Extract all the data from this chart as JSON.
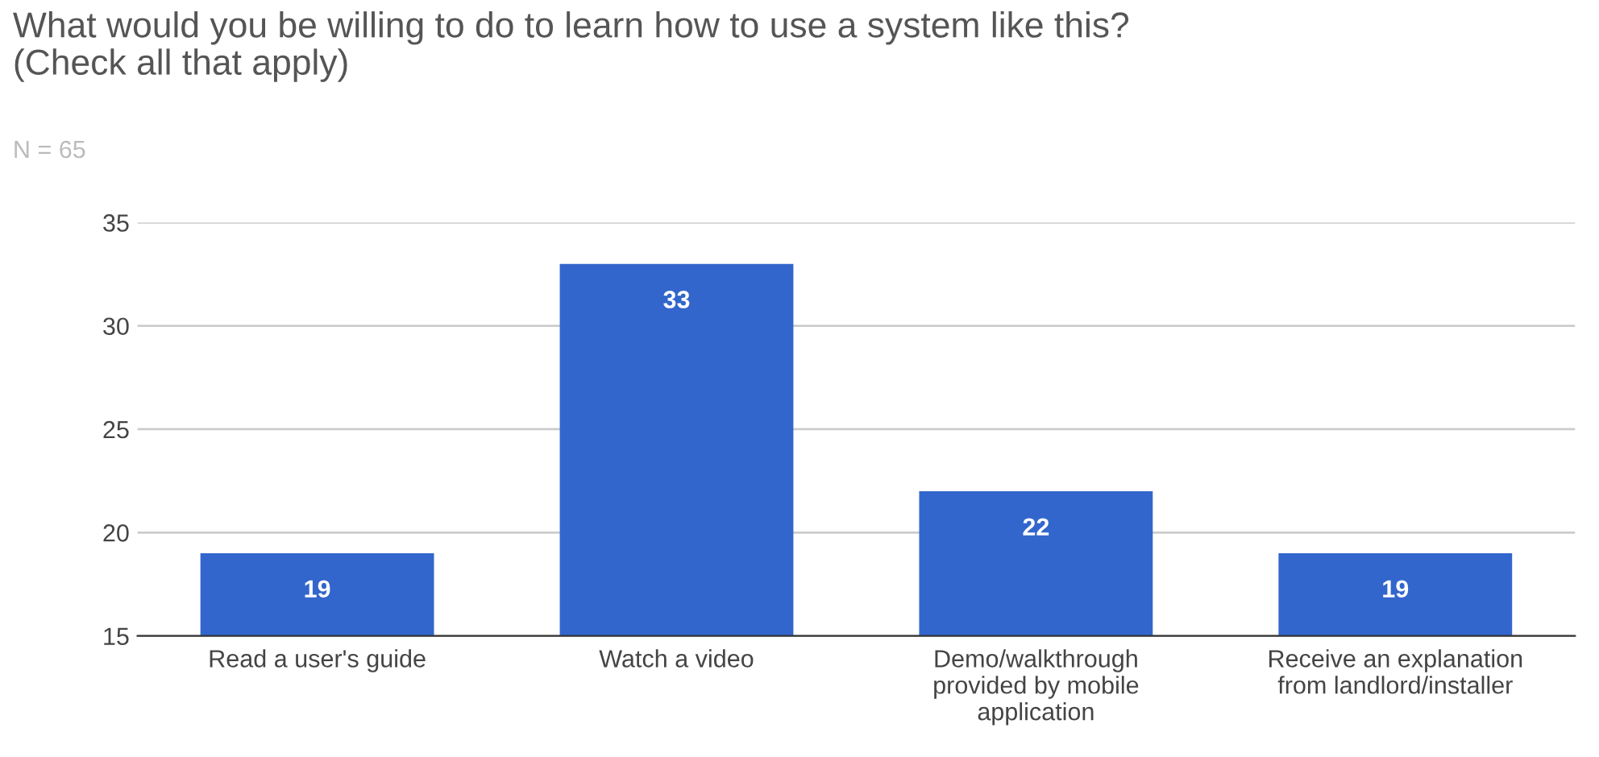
{
  "chart_data": {
    "type": "bar",
    "title": "What would you be willing to do to learn how to use a system like this?\n(Check all that apply)",
    "subtitle": "N = 65",
    "categories": [
      "Read a user's guide",
      "Watch a video",
      "Demo/walkthrough\nprovided by mobile\napplication",
      "Receive an explanation\nfrom landlord/installer"
    ],
    "values": [
      19,
      33,
      22,
      19
    ],
    "color": "#3366cc",
    "ylim": [
      15,
      35
    ],
    "yticks": [
      15,
      20,
      25,
      30,
      35
    ],
    "grid": "y",
    "data_labels": true,
    "legend": false
  }
}
